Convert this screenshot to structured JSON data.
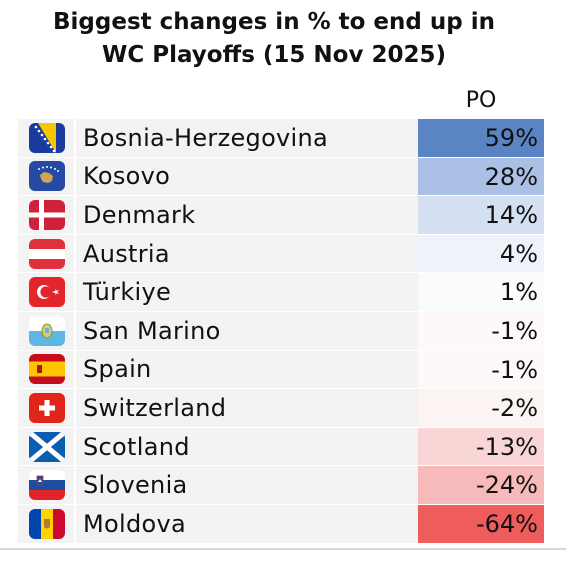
{
  "title_line1": "Biggest changes in % to end up in",
  "title_line2": "WC Playoffs (15 Nov 2025)",
  "column_header": "PO",
  "chart_data": {
    "type": "table",
    "title": "Biggest changes in % to end up in WC Playoffs (15 Nov 2025)",
    "columns": [
      "PO"
    ],
    "rows": [
      {
        "country": "Bosnia-Herzegovina",
        "flag": "bosnia-flag-icon",
        "value": 59,
        "label": "59%",
        "color": "#5b84c4"
      },
      {
        "country": "Kosovo",
        "flag": "kosovo-flag-icon",
        "value": 28,
        "label": "28%",
        "color": "#aac1e5"
      },
      {
        "country": "Denmark",
        "flag": "denmark-flag-icon",
        "value": 14,
        "label": "14%",
        "color": "#d4e0f1"
      },
      {
        "country": "Austria",
        "flag": "austria-flag-icon",
        "value": 4,
        "label": "4%",
        "color": "#eef3fa"
      },
      {
        "country": "Türkiye",
        "flag": "turkiye-flag-icon",
        "value": 1,
        "label": "1%",
        "color": "#f9fbfd"
      },
      {
        "country": "San Marino",
        "flag": "san-marino-flag-icon",
        "value": -1,
        "label": "-1%",
        "color": "#fdf9f9"
      },
      {
        "country": "Spain",
        "flag": "spain-flag-icon",
        "value": -1,
        "label": "-1%",
        "color": "#fdf9f9"
      },
      {
        "country": "Switzerland",
        "flag": "switzerland-flag-icon",
        "value": -2,
        "label": "-2%",
        "color": "#fcf3f3"
      },
      {
        "country": "Scotland",
        "flag": "scotland-flag-icon",
        "value": -13,
        "label": "-13%",
        "color": "#f8d6d6"
      },
      {
        "country": "Slovenia",
        "flag": "slovenia-flag-icon",
        "value": -24,
        "label": "-24%",
        "color": "#f6baba"
      },
      {
        "country": "Moldova",
        "flag": "moldova-flag-icon",
        "value": -64,
        "label": "-64%",
        "color": "#ee5c5c"
      }
    ]
  }
}
